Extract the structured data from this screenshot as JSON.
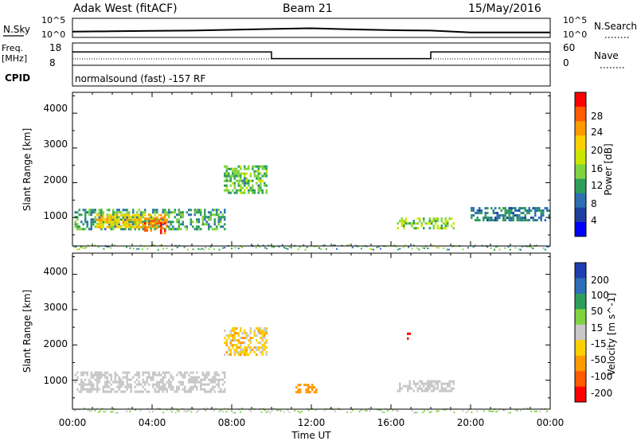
{
  "header": {
    "site": "Adak West (fitACF)",
    "beam": "Beam 21",
    "date": "15/May/2016"
  },
  "top_panels": {
    "nsky_label": "N.Sky",
    "nsearch_label": "N.Search",
    "nsky_ticks": [
      "10^5",
      "10^0"
    ],
    "nsearch_ticks": [
      "10^5",
      "10^0"
    ],
    "freq_label_1": "Freq.",
    "freq_label_2": "[MHz]",
    "freq_ticks": [
      "18",
      "8"
    ],
    "nave_label": "Nave",
    "nave_ticks": [
      "60",
      "0"
    ],
    "cpid_label": "CPID",
    "cpid_text": "normalsound (fast) -157 RF"
  },
  "axes": {
    "ylabel": "Slant Range [km]",
    "xlabel": "Time UT",
    "y_ticks": [
      "4000",
      "3000",
      "2000",
      "1000"
    ],
    "x_ticks": [
      "00:00",
      "04:00",
      "08:00",
      "12:00",
      "16:00",
      "20:00",
      "00:00"
    ]
  },
  "power_colorbar": {
    "label": "Power [dB]",
    "ticks": [
      "28",
      "24",
      "20",
      "16",
      "12",
      "8",
      "4"
    ],
    "colors": [
      "#ff0000",
      "#ff5a00",
      "#ff9a00",
      "#ffd000",
      "#cde600",
      "#7fd440",
      "#2e9e5a",
      "#2d6fb0",
      "#1f3fa0",
      "#0000ff"
    ]
  },
  "velocity_colorbar": {
    "label": "Velocity [m s^-1]",
    "ticks": [
      "200",
      "100",
      "50",
      "15",
      "-15",
      "-50",
      "-100",
      "-200"
    ],
    "colors": [
      "#1f3fb0",
      "#2d6fb8",
      "#2e9e5a",
      "#7fd440",
      "#c8c8c8",
      "#ffd000",
      "#ff9a00",
      "#ff5a00",
      "#ff0000"
    ]
  },
  "chart_data": [
    {
      "type": "heatmap",
      "title": "Adak West (fitACF) Beam 21 15/May/2016",
      "xlabel": "Time UT",
      "ylabel": "Slant Range [km]",
      "zlabel": "Power [dB]",
      "xlim": [
        "00:00",
        "24:00"
      ],
      "ylim": [
        180,
        4600
      ],
      "zlim": [
        0,
        30
      ],
      "regions": [
        {
          "t_start": 0.1,
          "t_end": 7.7,
          "range_min": 700,
          "range_max": 1250,
          "typical_power_db": 10
        },
        {
          "t_start": 1.2,
          "t_end": 4.8,
          "range_min": 700,
          "range_max": 1100,
          "typical_power_db": 20
        },
        {
          "t_start": 3.6,
          "t_end": 4.8,
          "range_min": 550,
          "range_max": 1000,
          "typical_power_db": 26
        },
        {
          "t_start": 7.6,
          "t_end": 9.8,
          "range_min": 1700,
          "range_max": 2500,
          "typical_power_db": 12
        },
        {
          "t_start": 16.3,
          "t_end": 19.2,
          "range_min": 700,
          "range_max": 1000,
          "typical_power_db": 14
        },
        {
          "t_start": 20.0,
          "t_end": 24.0,
          "range_min": 900,
          "range_max": 1300,
          "typical_power_db": 8
        }
      ]
    },
    {
      "type": "heatmap",
      "title": "",
      "xlabel": "Time UT",
      "ylabel": "Slant Range [km]",
      "zlabel": "Velocity [m s^-1]",
      "xlim": [
        "00:00",
        "24:00"
      ],
      "ylim": [
        180,
        4600
      ],
      "zlim": [
        -250,
        250
      ],
      "regions": [
        {
          "t_start": 0.1,
          "t_end": 7.7,
          "range_min": 700,
          "range_max": 1250,
          "typical_velocity": 0
        },
        {
          "t_start": 7.6,
          "t_end": 9.8,
          "range_min": 1700,
          "range_max": 2500,
          "typical_velocity": -20
        },
        {
          "t_start": 11.2,
          "t_end": 12.2,
          "range_min": 650,
          "range_max": 900,
          "typical_velocity": -60
        },
        {
          "t_start": 16.7,
          "t_end": 17.0,
          "range_min": 2200,
          "range_max": 2350,
          "typical_velocity": -200
        },
        {
          "t_start": 16.3,
          "t_end": 19.2,
          "range_min": 700,
          "range_max": 1000,
          "typical_velocity": 0
        }
      ]
    },
    {
      "type": "line",
      "title": "N.Sky / N.Search",
      "x": [
        0,
        2,
        4,
        6,
        8,
        10,
        12,
        14,
        16,
        18,
        20,
        22,
        24
      ],
      "series": [
        {
          "name": "N.Sky",
          "values": [
            1.5,
            1.6,
            1.7,
            1.8,
            2.0,
            2.2,
            2.4,
            2.1,
            1.9,
            1.8,
            1.3,
            1.3,
            1.3
          ]
        }
      ]
    },
    {
      "type": "line",
      "title": "Freq. [MHz] / Nave",
      "x": [
        0,
        10,
        10,
        18,
        18,
        24
      ],
      "series": [
        {
          "name": "Freq.",
          "values": [
            14,
            14,
            11,
            11,
            14,
            14
          ]
        }
      ]
    }
  ]
}
